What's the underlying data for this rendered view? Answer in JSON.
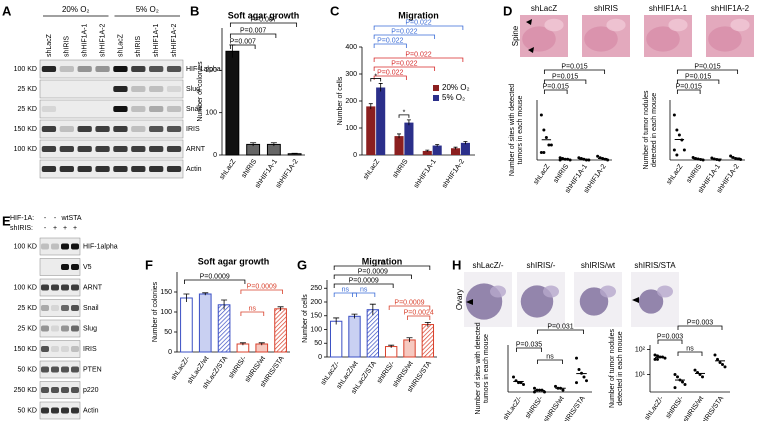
{
  "panel_labels": [
    "A",
    "B",
    "C",
    "D",
    "E",
    "F",
    "G",
    "H"
  ],
  "panel_a": {
    "conditions": [
      "20% O₂",
      "5% O₂"
    ],
    "lanes": [
      "shLacZ",
      "shIRIS",
      "shHIF1A-1",
      "shHIF1A-2",
      "shLacZ",
      "shIRIS",
      "shHIF1A-1",
      "shHIF1A-2"
    ],
    "rows": [
      {
        "protein": "HIF-1alpha",
        "size": "100 KD"
      },
      {
        "protein": "Slug",
        "size": "25 KD"
      },
      {
        "protein": "Snail",
        "size": "25 KD"
      },
      {
        "protein": "IRIS",
        "size": "150 KD"
      },
      {
        "protein": "ARNT",
        "size": "100 KD"
      },
      {
        "protein": "Actin"
      }
    ]
  },
  "panel_d_images": {
    "section": "Spine",
    "labels": [
      "shLacZ",
      "shIRIS",
      "shHIF1A-1",
      "shHIF1A-2"
    ]
  },
  "panel_e": {
    "hif_label": "HIF-1A:",
    "hif_lanes": [
      "-",
      "-",
      "wt",
      "STA"
    ],
    "iris_label": "shIRIS:",
    "iris_lanes": [
      "-",
      "+",
      "+",
      "+"
    ],
    "rows": [
      {
        "protein": "HIF-1alpha",
        "size": "100 KD"
      },
      {
        "protein": "V5"
      },
      {
        "protein": "ARNT",
        "size": "100 KD"
      },
      {
        "protein": "Snail",
        "size": "25 KD"
      },
      {
        "protein": "Slug",
        "size": "25 KD"
      },
      {
        "protein": "IRIS",
        "size": "150 KD"
      },
      {
        "protein": "PTEN",
        "size": "50 KD"
      },
      {
        "protein": "p220",
        "size": "250 KD"
      },
      {
        "protein": "Actin",
        "size": "50 KD"
      }
    ]
  },
  "panel_h_images": {
    "section": "Ovary",
    "labels": [
      "shLacZ/-",
      "shIRIS/-",
      "shIRIS/wt",
      "shIRIS/STA"
    ]
  },
  "chart_data": [
    {
      "type": "bar",
      "title": "Soft agar growth",
      "ylabel": [
        "Number of colonies"
      ],
      "categories": [
        "shLacZ",
        "shIRIS",
        "shHIF1A-1",
        "shHIF1A-2"
      ],
      "values": [
        245,
        25,
        25,
        3
      ],
      "errors": [
        15,
        4,
        4,
        1
      ],
      "fill_colors": [
        "#111111",
        "#666666",
        "#666666",
        "#666666"
      ],
      "edge_colors": [
        "#000000",
        "#000000",
        "#000000",
        "#000000"
      ],
      "ylim": [
        0,
        300
      ],
      "yticks": [
        0,
        100,
        200
      ],
      "annotations": [
        {
          "text": "P=0.007",
          "between": [
            0,
            3
          ],
          "color": "#000000"
        },
        {
          "text": "P=0.007",
          "between": [
            0,
            2
          ],
          "color": "#000000"
        },
        {
          "text": "P=0.007",
          "between": [
            0,
            1
          ],
          "color": "#000000"
        }
      ]
    },
    {
      "type": "bar",
      "title": "Migration",
      "ylabel": [
        "Number of cells"
      ],
      "categories": [
        "shLacZ",
        "shIRIS",
        "shHIF1A-1",
        "shHIF1A-2"
      ],
      "series": [
        {
          "name": "20% O₂",
          "color": "#8b1f1f",
          "values": [
            180,
            70,
            15,
            25
          ],
          "errors": [
            10,
            8,
            3,
            4
          ]
        },
        {
          "name": "5% O₂",
          "color": "#2b2f8a",
          "values": [
            250,
            120,
            35,
            45
          ],
          "errors": [
            15,
            10,
            4,
            5
          ]
        }
      ],
      "ylim": [
        0,
        400
      ],
      "yticks": [
        0,
        100,
        200,
        300,
        400
      ],
      "annotations": [
        {
          "text": "P=0.022",
          "between": [
            0,
            3
          ],
          "color": "#3a6bd6"
        },
        {
          "text": "P=0.022",
          "between": [
            0,
            2
          ],
          "color": "#3a6bd6"
        },
        {
          "text": "P=0.022",
          "between": [
            0,
            1
          ],
          "color": "#3a6bd6"
        },
        {
          "text": "P=0.022",
          "between": [
            0,
            3
          ],
          "color": "#d62a2a"
        },
        {
          "text": "P=0.022",
          "between": [
            0,
            2
          ],
          "color": "#d62a2a"
        },
        {
          "text": "P=0.022",
          "between": [
            0,
            1
          ],
          "color": "#d62a2a"
        },
        {
          "text": "*",
          "group": 0,
          "color": "#000000"
        },
        {
          "text": "*",
          "group": 1,
          "color": "#000000"
        }
      ]
    },
    {
      "type": "strip",
      "ylabel": [
        "Number of sites with detected",
        "tumors in each mouse"
      ],
      "categories": [
        "shLacZ",
        "shIRIS",
        "shHIF1A-1",
        "shHIF1A-2"
      ],
      "points": [
        [
          6,
          4,
          3,
          2,
          2,
          1,
          1
        ],
        [
          0.3,
          0.2,
          0.1,
          0.1,
          0,
          0
        ],
        [
          0.3,
          0.2,
          0.1,
          0,
          0
        ],
        [
          0.5,
          0.3,
          0.2,
          0.1,
          0
        ]
      ],
      "means": [
        2.7,
        0.1,
        0.1,
        0.2
      ],
      "ylim": [
        0,
        8
      ],
      "annotations": [
        {
          "text": "P=0.015",
          "between": [
            0,
            3
          ],
          "color": "#000000"
        },
        {
          "text": "P=0.015",
          "between": [
            0,
            2
          ],
          "color": "#000000"
        },
        {
          "text": "P=0.015",
          "between": [
            0,
            1
          ],
          "color": "#000000"
        }
      ]
    },
    {
      "type": "strip",
      "ylabel": [
        "Number of tumor nodules",
        "detected in each mouse"
      ],
      "categories": [
        "shLacZ",
        "shIRIS",
        "shHIF1A-1",
        "shHIF1A-2"
      ],
      "points": [
        [
          9,
          6,
          5,
          4,
          2,
          2,
          1
        ],
        [
          0.5,
          0.3,
          0.2,
          0.1,
          0
        ],
        [
          0.4,
          0.2,
          0.1,
          0
        ],
        [
          0.8,
          0.5,
          0.3,
          0.2,
          0.1
        ]
      ],
      "means": [
        4.1,
        0.2,
        0.2,
        0.4
      ],
      "ylim": [
        0,
        12
      ],
      "annotations": [
        {
          "text": "P=0.015",
          "between": [
            0,
            3
          ],
          "color": "#000000"
        },
        {
          "text": "P=0.015",
          "between": [
            0,
            2
          ],
          "color": "#000000"
        },
        {
          "text": "P=0.015",
          "between": [
            0,
            1
          ],
          "color": "#000000"
        }
      ]
    },
    {
      "type": "bar",
      "title": "Soft agar growth",
      "ylabel": [
        "Number of colonies"
      ],
      "categories": [
        "shLacZ/-",
        "shLacZ/wt",
        "shLacZ/STA",
        "shIRIS/-",
        "shIRIS/wt",
        "shIRIS/STA"
      ],
      "values": [
        135,
        145,
        118,
        20,
        20,
        108
      ],
      "errors": [
        10,
        3,
        12,
        3,
        3,
        5
      ],
      "fill_colors": [
        "#ffffff",
        "#c9d0f2",
        "#ffffff",
        "#ffffff",
        "#f6c9c0",
        "#ffffff"
      ],
      "edge_colors": [
        "#3a4fc4",
        "#3a4fc4",
        "#3a4fc4",
        "#d9402b",
        "#d9402b",
        "#d9402b"
      ],
      "hatch": [
        false,
        false,
        true,
        false,
        false,
        true
      ],
      "ylim": [
        0,
        200
      ],
      "yticks": [
        0,
        50,
        100,
        150
      ],
      "annotations": [
        {
          "text": "P=0.0009",
          "between": [
            0,
            3
          ],
          "color": "#000000"
        },
        {
          "text": "P=0.0009",
          "between": [
            3,
            5
          ],
          "color": "#d9402b"
        },
        {
          "text": "ns",
          "between": [
            3,
            4
          ],
          "color": "#d9402b"
        }
      ]
    },
    {
      "type": "bar",
      "title": "Migration",
      "ylabel": [
        "Number of cells"
      ],
      "categories": [
        "shLacZ/-",
        "shLacZ/wt",
        "shLacZ/STA",
        "shIRIS/-",
        "shIRIS/wt",
        "shIRIS/STA"
      ],
      "values": [
        130,
        148,
        172,
        38,
        62,
        118
      ],
      "errors": [
        12,
        8,
        20,
        5,
        8,
        8
      ],
      "fill_colors": [
        "#ffffff",
        "#c9d0f2",
        "#ffffff",
        "#ffffff",
        "#f6c9c0",
        "#ffffff"
      ],
      "edge_colors": [
        "#3a4fc4",
        "#3a4fc4",
        "#3a4fc4",
        "#d9402b",
        "#d9402b",
        "#d9402b"
      ],
      "hatch": [
        false,
        false,
        true,
        false,
        false,
        true
      ],
      "ylim": [
        0,
        280
      ],
      "yticks": [
        0,
        50,
        100,
        150,
        200,
        250
      ],
      "annotations": [
        {
          "text": "ns",
          "between": [
            0,
            5
          ],
          "color": "#000000"
        },
        {
          "text": "P=0.0009",
          "between": [
            0,
            4
          ],
          "color": "#000000"
        },
        {
          "text": "P=0.0009",
          "between": [
            0,
            3
          ],
          "color": "#000000"
        },
        {
          "text": "ns",
          "between": [
            0,
            1
          ],
          "color": "#3a6bd6"
        },
        {
          "text": "ns",
          "between": [
            1,
            2
          ],
          "color": "#3a6bd6"
        },
        {
          "text": "P=0.0009",
          "between": [
            3,
            5
          ],
          "color": "#d9402b"
        },
        {
          "text": "P=0.0024",
          "between": [
            4,
            5
          ],
          "color": "#d9402b"
        }
      ]
    },
    {
      "type": "strip",
      "ylabel": [
        "Number of sites with detected",
        "tumors in each mouse"
      ],
      "categories": [
        "shLacZ/-",
        "shIRIS/-",
        "shIRIS/wt",
        "shIRIS/STA"
      ],
      "points": [
        [
          8,
          6,
          5,
          5,
          4
        ],
        [
          2,
          1,
          1,
          1,
          0,
          0
        ],
        [
          3,
          2,
          2,
          1
        ],
        [
          18,
          12,
          10,
          8,
          6,
          5
        ]
      ],
      "means": [
        5.6,
        0.8,
        2,
        9.8
      ],
      "ylim": [
        0,
        25
      ],
      "annotations": [
        {
          "text": "P=0.031",
          "between": [
            1,
            3
          ],
          "color": "#000000"
        },
        {
          "text": "P=0.035",
          "between": [
            0,
            1
          ],
          "color": "#000000"
        },
        {
          "text": "ns",
          "between": [
            1,
            2
          ],
          "color": "#000000"
        }
      ]
    },
    {
      "type": "strip",
      "log": true,
      "ylabel": [
        "Number of tumor nodules",
        "detected in each mouse"
      ],
      "categories": [
        "shLacZ/-",
        "shIRIS/-",
        "shIRIS/wt",
        "shIRIS/STA"
      ],
      "points": [
        [
          60,
          55,
          50,
          50,
          45,
          40,
          40
        ],
        [
          10,
          8,
          6,
          5,
          4,
          3
        ],
        [
          15,
          12,
          10,
          8
        ],
        [
          60,
          40,
          30,
          25,
          20
        ]
      ],
      "means": [
        48,
        6,
        11,
        35
      ],
      "ylim": [
        2,
        150
      ],
      "yticks": [
        {
          "value": 10,
          "label": "10¹"
        },
        {
          "value": 100,
          "label": "10²"
        }
      ],
      "annotations": [
        {
          "text": "P=0.003",
          "between": [
            1,
            3
          ],
          "color": "#000000"
        },
        {
          "text": "P=0.003",
          "between": [
            0,
            1
          ],
          "color": "#000000"
        },
        {
          "text": "ns",
          "between": [
            1,
            2
          ],
          "color": "#000000"
        }
      ]
    }
  ]
}
